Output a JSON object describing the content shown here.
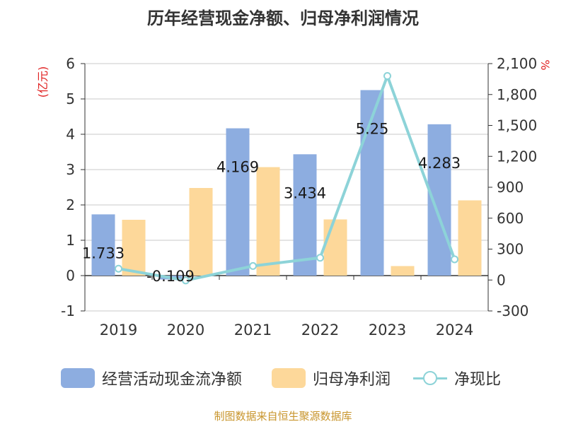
{
  "title": "历年经营现金净额、归母净利润情况",
  "source": "制图数据来自恒生聚源数据库",
  "colors": {
    "cash": "#8dade0",
    "profit": "#fdd89a",
    "ratio": "#8dd3d8"
  },
  "chart_data": {
    "type": "bar",
    "categories": [
      "2019",
      "2020",
      "2021",
      "2022",
      "2023",
      "2024"
    ],
    "left_axis": {
      "unit": "(亿元)",
      "ylim": [
        -1,
        6
      ],
      "ticks": [
        -1,
        0,
        1,
        2,
        3,
        4,
        5,
        6
      ]
    },
    "right_axis": {
      "unit": "%",
      "ylim": [
        -300,
        2100
      ],
      "ticks": [
        "-300",
        "0",
        "300",
        "600",
        "900",
        "1,200",
        "1,500",
        "1,800",
        "2,100"
      ],
      "tick_values": [
        -300,
        0,
        300,
        600,
        900,
        1200,
        1500,
        1800,
        2100
      ]
    },
    "series": [
      {
        "name": "经营活动现金流净额",
        "type": "bar",
        "axis": "left",
        "values": [
          1.733,
          -0.109,
          4.169,
          3.434,
          5.25,
          4.283
        ],
        "labels": [
          "1.733",
          "-0.109",
          "4.169",
          "3.434",
          "5.25",
          "4.283"
        ]
      },
      {
        "name": "归母净利润",
        "type": "bar",
        "axis": "left",
        "values": [
          1.58,
          2.48,
          3.07,
          1.59,
          0.27,
          2.13
        ]
      },
      {
        "name": "净现比",
        "type": "line",
        "axis": "right",
        "values": [
          110,
          -4,
          136,
          216,
          1980,
          201
        ]
      }
    ],
    "grid": true,
    "legend_position": "bottom"
  }
}
